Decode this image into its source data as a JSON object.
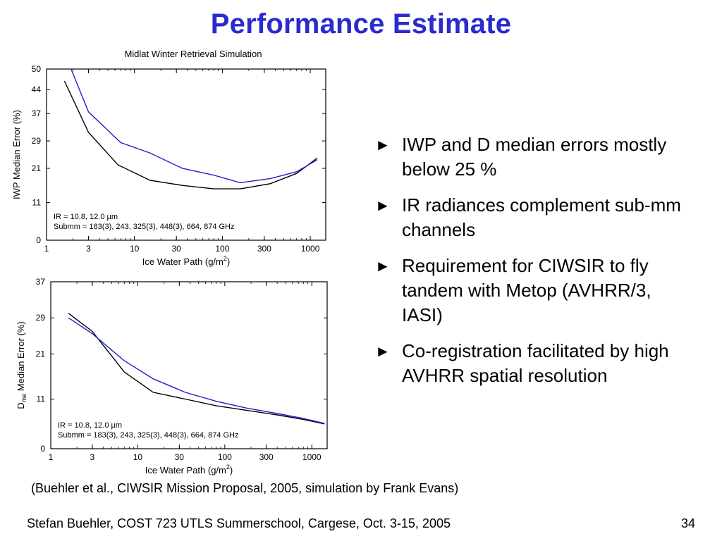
{
  "slide": {
    "title": "Performance Estimate",
    "bullets": [
      "IWP and D median errors mostly below 25 %",
      "IR radiances complement sub-mm channels",
      "Requirement for CIWSIR to fly tandem with Metop (AVHRR/3, IASI)",
      "Co-registration facilitated by high AVHRR spatial resolution"
    ],
    "bullet_symbol": "►",
    "caption": "(Buehler et al., CIWSIR Mission Proposal, 2005, simulation by Frank Evans)",
    "footer_left": "Stefan Buehler, COST 723 UTLS Summerschool, Cargese, Oct. 3-15, 2005",
    "page_number": "34"
  },
  "chart_data": [
    {
      "type": "line",
      "title": "Midlat Winter Retrieval Simulation",
      "xlabel": "Ice Water Path (g/m²)",
      "ylabel": "IWP Median Error (%)",
      "x_scale": "log",
      "xlim": [
        1,
        1500
      ],
      "ylim": [
        0,
        50
      ],
      "x_ticks": [
        1,
        3,
        10,
        30,
        100,
        300,
        1000
      ],
      "x_tick_labels": [
        "1",
        "3",
        "10",
        "30",
        "100",
        "300",
        "1000"
      ],
      "y_ticks": [
        0,
        11,
        21,
        29,
        37,
        44,
        50
      ],
      "y_tick_labels": [
        "0",
        "11",
        "21",
        "29",
        "37",
        "44",
        "50"
      ],
      "annotation": [
        "IR = 10.8, 12.0 µm",
        "Submm = 183(3), 243, 325(3), 448(3), 664, 874 GHz"
      ],
      "series": [
        {
          "color": "#000000",
          "x": [
            1.6,
            3,
            6.5,
            15,
            35,
            80,
            160,
            350,
            700,
            1200
          ],
          "y": [
            46.5,
            31.5,
            22.0,
            17.5,
            16.0,
            15.0,
            15.0,
            16.5,
            19.5,
            24.0
          ]
        },
        {
          "color": "#1f1fd0",
          "x": [
            1.9,
            3,
            7,
            15,
            35,
            80,
            160,
            350,
            700,
            1200
          ],
          "y": [
            50.0,
            37.5,
            28.5,
            25.5,
            21.0,
            19.0,
            16.8,
            18.0,
            20.0,
            23.5
          ]
        }
      ]
    },
    {
      "type": "line",
      "title": "",
      "xlabel": "Ice Water Path (g/m²)",
      "ylabel": "Dme Median Error (%)",
      "ylabel_main": "D",
      "ylabel_sub": "me",
      "ylabel_rest": " Median Error (%)",
      "x_scale": "log",
      "xlim": [
        1,
        1500
      ],
      "ylim": [
        0,
        37
      ],
      "x_ticks": [
        1,
        3,
        10,
        30,
        100,
        300,
        1000
      ],
      "x_tick_labels": [
        "1",
        "3",
        "10",
        "30",
        "100",
        "300",
        "1000"
      ],
      "y_ticks": [
        0,
        11,
        21,
        29,
        37
      ],
      "y_tick_labels": [
        "0",
        "11",
        "21",
        "29",
        "37"
      ],
      "annotation": [
        "IR = 10.8, 12.0 µm",
        "Submm = 183(3), 243, 325(3), 448(3), 664, 874 GHz"
      ],
      "series": [
        {
          "color": "#000000",
          "x": [
            1.6,
            3,
            7,
            15,
            35,
            80,
            180,
            400,
            800,
            1400
          ],
          "y": [
            30.0,
            26.0,
            17.0,
            12.5,
            11.0,
            9.5,
            8.5,
            7.5,
            6.5,
            5.5
          ]
        },
        {
          "color": "#1f1fd0",
          "x": [
            1.6,
            3,
            7,
            15,
            35,
            80,
            180,
            400,
            800,
            1400
          ],
          "y": [
            29.0,
            25.5,
            19.5,
            15.5,
            12.5,
            10.5,
            9.0,
            7.8,
            6.7,
            5.6
          ]
        }
      ]
    }
  ]
}
